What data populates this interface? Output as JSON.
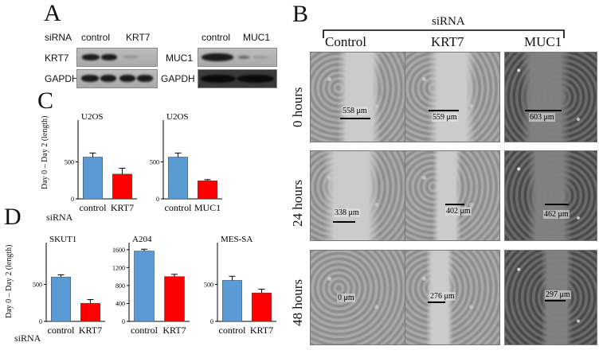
{
  "panels": {
    "a": "A",
    "b": "B",
    "c": "C",
    "d": "D"
  },
  "blot": {
    "sirna_label": "siRNA",
    "left_cols": [
      "control",
      "KRT7"
    ],
    "right_cols": [
      "control",
      "MUC1"
    ],
    "left_rows": [
      "KRT7",
      "GAPDH"
    ],
    "right_rows": [
      "MUC1",
      "GAPDH"
    ]
  },
  "scratch": {
    "title": "siRNA",
    "columns": [
      "Control",
      "KRT7",
      "MUC1"
    ],
    "rows": [
      "0 hours",
      "24 hours",
      "48 hours"
    ],
    "measurements": [
      [
        "558 μm",
        "559 μm",
        "603 μm"
      ],
      [
        "338 μm",
        "402 μm",
        "462 μm"
      ],
      [
        "0 μm",
        "276 μm",
        "297 μm"
      ]
    ]
  },
  "ylabel": "Day 0 – Day 2 (length)",
  "sirna_row_label": "siRNA",
  "colors": {
    "control": "#5b9bd5",
    "knockdown": "#ff0000"
  },
  "chart_data": [
    {
      "type": "bar",
      "panel": "C",
      "title": "U2OS",
      "categories": [
        "control",
        "KRT7"
      ],
      "values": [
        565,
        335
      ],
      "errors": [
        55,
        80
      ],
      "ylim": [
        0,
        1000
      ],
      "yticks": [
        0,
        500
      ],
      "ylabel": "Day 0 – Day 2 (length)"
    },
    {
      "type": "bar",
      "panel": "C",
      "title": "U2OS",
      "categories": [
        "control",
        "MUC1"
      ],
      "values": [
        565,
        245
      ],
      "errors": [
        55,
        15
      ],
      "ylim": [
        0,
        1000
      ],
      "yticks": [
        0,
        500
      ],
      "ylabel": ""
    },
    {
      "type": "bar",
      "panel": "D",
      "title": "SKUT1",
      "categories": [
        "control",
        "KRT7"
      ],
      "values": [
        600,
        245
      ],
      "errors": [
        30,
        50
      ],
      "ylim": [
        0,
        1000
      ],
      "yticks": [
        0,
        500
      ],
      "ylabel": "Day 0 – Day 2 (length)"
    },
    {
      "type": "bar",
      "panel": "D",
      "title": "A204",
      "categories": [
        "control",
        "KRT7"
      ],
      "values": [
        1570,
        1000
      ],
      "errors": [
        40,
        50
      ],
      "ylim": [
        0,
        1650
      ],
      "yticks": [
        0,
        400,
        800,
        1200,
        1600
      ],
      "ylabel": ""
    },
    {
      "type": "bar",
      "panel": "D",
      "title": "MES-SA",
      "categories": [
        "control",
        "KRT7"
      ],
      "values": [
        555,
        385
      ],
      "errors": [
        55,
        50
      ],
      "ylim": [
        0,
        1000
      ],
      "yticks": [
        0,
        500
      ],
      "ylabel": ""
    }
  ]
}
